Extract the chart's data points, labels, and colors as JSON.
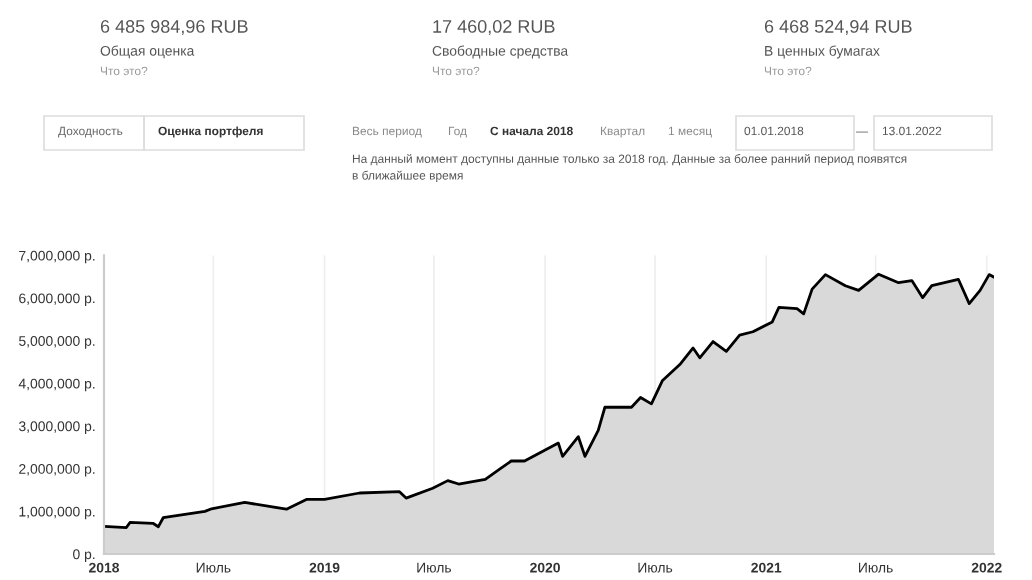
{
  "chart_data": {
    "type": "area",
    "x": [
      "2018-01-01",
      "2018-02-07",
      "2018-02-13",
      "2018-03-23",
      "2018-04-01",
      "2018-04-09",
      "2018-06-17",
      "2018-06-28",
      "2018-08-22",
      "2018-10-30",
      "2018-12-02",
      "2019-01-01",
      "2019-02-28",
      "2019-05-05",
      "2019-05-16",
      "2019-06-29",
      "2019-07-24",
      "2019-08-11",
      "2019-09-24",
      "2019-10-19",
      "2019-11-06",
      "2019-11-28",
      "2020-01-23",
      "2020-01-30",
      "2020-02-25",
      "2020-03-07",
      "2020-03-29",
      "2020-04-09",
      "2020-05-23",
      "2020-06-07",
      "2020-06-25",
      "2020-07-13",
      "2020-08-11",
      "2020-09-02",
      "2020-09-13",
      "2020-10-05",
      "2020-10-27",
      "2020-11-18",
      "2020-12-10",
      "2021-01-11",
      "2021-01-22",
      "2021-02-21",
      "2021-03-04",
      "2021-03-18",
      "2021-04-09",
      "2021-05-12",
      "2021-06-03",
      "2021-07-06",
      "2021-08-08",
      "2021-08-30",
      "2021-09-17",
      "2021-10-02",
      "2021-11-15",
      "2021-12-03",
      "2021-12-21",
      "2022-01-05",
      "2022-01-13"
    ],
    "series": [
      {
        "color": "#d9d9d9",
        "values": [
          650000,
          620000,
          740000,
          720000,
          640000,
          850000,
          1000000,
          1060000,
          1210000,
          1050000,
          1280000,
          1280000,
          1430000,
          1460000,
          1310000,
          1540000,
          1720000,
          1640000,
          1750000,
          2000000,
          2180000,
          2180000,
          2600000,
          2290000,
          2750000,
          2290000,
          2900000,
          3440000,
          3440000,
          3670000,
          3520000,
          4060000,
          4440000,
          4830000,
          4600000,
          4980000,
          4750000,
          5130000,
          5210000,
          5440000,
          5780000,
          5750000,
          5630000,
          6210000,
          6550000,
          6290000,
          6180000,
          6560000,
          6360000,
          6410000,
          6010000,
          6290000,
          6440000,
          5870000,
          6180000,
          6550000,
          6490000
        ]
      }
    ],
    "xlim": [
      "2018-01-01",
      "2022-01-13"
    ],
    "xticks": [
      {
        "value": "2018-01-01",
        "label": "2018"
      },
      {
        "value": "2018-07-01",
        "label": "Июль"
      },
      {
        "value": "2019-01-01",
        "label": "2019"
      },
      {
        "value": "2019-07-01",
        "label": "Июль"
      },
      {
        "value": "2020-01-01",
        "label": "2020"
      },
      {
        "value": "2020-07-01",
        "label": "Июль"
      },
      {
        "value": "2021-01-01",
        "label": "2021"
      },
      {
        "value": "2021-07-01",
        "label": "Июль"
      },
      {
        "value": "2022-01-01",
        "label": "2022"
      }
    ],
    "ylim": [
      0,
      7000000
    ],
    "yticks": [
      {
        "value": 0,
        "label": "0 р."
      },
      {
        "value": 1000000,
        "label": "1,000,000 р."
      },
      {
        "value": 2000000,
        "label": "2,000,000 р."
      },
      {
        "value": 3000000,
        "label": "3,000,000 р."
      },
      {
        "value": 4000000,
        "label": "4,000,000 р."
      },
      {
        "value": 5000000,
        "label": "5,000,000 р."
      },
      {
        "value": 6000000,
        "label": "6,000,000 р."
      },
      {
        "value": 7000000,
        "label": "7,000,000 р."
      }
    ],
    "grid": "x",
    "legend": false,
    "annotations": [
      "6 485 984,96 RUB",
      "Общая оценка",
      "Что это?",
      "17 460,02 RUB",
      "Свободные средства",
      "Что это?",
      "6 468 524,94 RUB",
      "В ценных бумагах",
      "Что это?",
      "Доходность",
      "Оценка портфеля",
      "Весь период",
      "Год",
      "С начала 2018",
      "Квартал",
      "1 месяц",
      "01.01.2018",
      "—",
      "13.01.2022",
      "На данный момент доступны данные только за 2018 год. Данные за более ранний период появятся\nв ближайшее время"
    ]
  }
}
